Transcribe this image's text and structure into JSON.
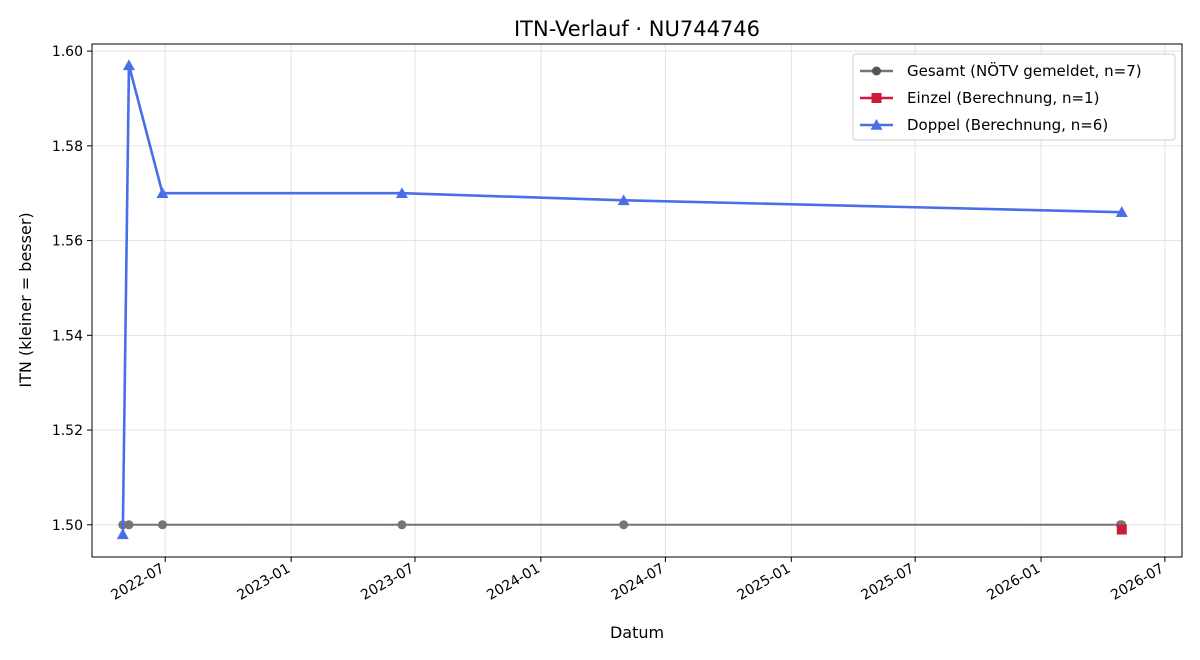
{
  "chart_data": {
    "type": "line",
    "title": "ITN-Verlauf · NU744746",
    "xlabel": "Datum",
    "ylabel": "ITN  (kleiner = besser)",
    "x_type": "date",
    "xlim": [
      "2022-03-16",
      "2026-07-26"
    ],
    "ylim": [
      1.4932,
      1.6015
    ],
    "x_ticks": [
      "2022-07",
      "2023-01",
      "2023-07",
      "2024-01",
      "2024-07",
      "2025-01",
      "2025-07",
      "2026-01",
      "2026-07"
    ],
    "y_ticks": [
      "1.50",
      "1.52",
      "1.54",
      "1.56",
      "1.58",
      "1.60"
    ],
    "grid": true,
    "legend_position": "top-right",
    "series": [
      {
        "name": "Gesamt (NÖTV gemeldet, n=7)",
        "color": "#555555",
        "marker": "circle",
        "x": [
          "2022-04-30",
          "2022-05-09",
          "2022-06-27",
          "2023-06-12",
          "2024-05-01",
          "2026-04-27",
          "2026-04-29"
        ],
        "y": [
          1.5,
          1.5,
          1.5,
          1.5,
          1.5,
          1.5,
          1.5
        ]
      },
      {
        "name": "Einzel (Berechnung, n=1)",
        "color": "#cc1c3c",
        "marker": "square",
        "x": [
          "2026-04-29"
        ],
        "y": [
          1.499
        ]
      },
      {
        "name": "Doppel (Berechnung, n=6)",
        "color": "#4a6ee8",
        "marker": "triangle",
        "x": [
          "2022-04-30",
          "2022-05-09",
          "2022-06-27",
          "2023-06-12",
          "2024-05-01",
          "2026-04-29"
        ],
        "y": [
          1.498,
          1.597,
          1.57,
          1.57,
          1.5685,
          1.566
        ]
      }
    ]
  }
}
